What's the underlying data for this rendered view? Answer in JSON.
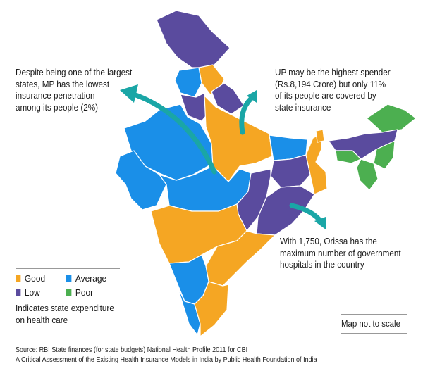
{
  "annotations": {
    "mp": [
      "Despite being one of the largest",
      "states, MP has the lowest",
      "insurance penetration",
      "among its people (2%)"
    ],
    "up": [
      "UP may be the highest spender",
      "(Rs.8,194 Crore) but only 11%",
      "of its people are covered by",
      "state insurance"
    ],
    "orissa": [
      "With 1,750, Orissa has the",
      "maximum number of government",
      "hospitals in the country"
    ]
  },
  "legend": {
    "items": [
      {
        "label": "Good",
        "color": "#f5a623"
      },
      {
        "label": "Average",
        "color": "#1a8fe8"
      },
      {
        "label": "Low",
        "color": "#5a4b9e"
      },
      {
        "label": "Poor",
        "color": "#4caf50"
      }
    ],
    "caption": [
      "Indicates state expenditure",
      "on health care"
    ]
  },
  "scale_note": "Map not to scale",
  "source": [
    "Source: RBI State finances (for state budgets) National Health Profile 2011 for CBI",
    "A Critical Assessment of the Existing Health Insurance Models in India by Public Health Foundation of India"
  ],
  "colors": {
    "good": "#f5a623",
    "average": "#1a8fe8",
    "low": "#5a4b9e",
    "poor": "#4caf50",
    "arrow": "#1aa6a6"
  }
}
